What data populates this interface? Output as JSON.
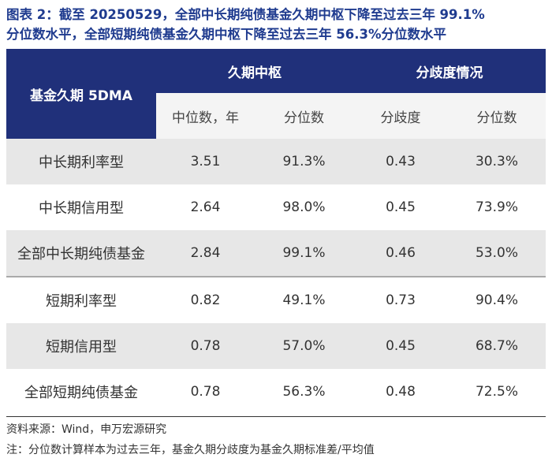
{
  "title": {
    "line1": "图表 2：截至 20250529，全部中长期纯债基金久期中枢下降至过去三年 99.1%",
    "line2": "分位数水平，全部短期纯债基金久期中枢下降至过去三年 56.3%分位数水平"
  },
  "table": {
    "row_header": "基金久期 5DMA",
    "groups": [
      "久期中枢",
      "分歧度情况"
    ],
    "subheaders": [
      "中位数，年",
      "分位数",
      "分歧度",
      "分位数"
    ],
    "rows": [
      {
        "label": "中长期利率型",
        "values": [
          "3.51",
          "91.3%",
          "0.43",
          "30.3%"
        ]
      },
      {
        "label": "中长期信用型",
        "values": [
          "2.64",
          "98.0%",
          "0.45",
          "73.9%"
        ]
      },
      {
        "label": "全部中长期纯债基金",
        "values": [
          "2.84",
          "99.1%",
          "0.46",
          "53.0%"
        ]
      },
      {
        "label": "短期利率型",
        "values": [
          "0.82",
          "49.1%",
          "0.73",
          "90.4%"
        ]
      },
      {
        "label": "短期信用型",
        "values": [
          "0.78",
          "57.0%",
          "0.45",
          "68.7%"
        ]
      },
      {
        "label": "全部短期纯债基金",
        "values": [
          "0.78",
          "56.3%",
          "0.48",
          "72.5%"
        ]
      }
    ]
  },
  "notes": {
    "source": "资料来源：Wind，申万宏源研究",
    "note": "注：分位数计算样本为过去三年，基金久期分歧度为基金久期标准差/平均值"
  },
  "colors": {
    "title": "#1f3b8f",
    "header_bg": "#20307a",
    "subheader_bg": "#f4f4f4",
    "row_shade": "#e7e7e7"
  }
}
